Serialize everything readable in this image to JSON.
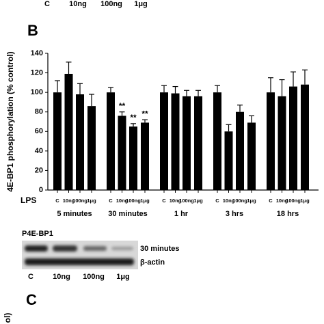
{
  "figure": {
    "top_lanes": [
      "C",
      "10ng",
      "100ng",
      "1μg"
    ],
    "panel_b": "B",
    "x_prefix": "LPS",
    "blot_title": "P4E-BP1",
    "blot_rows": [
      "30 minutes",
      "β-actin"
    ],
    "blot_lanes": [
      "C",
      "10ng",
      "100ng",
      "1μg"
    ],
    "panel_c": "C",
    "cut_label": "ol)"
  },
  "chart_data": {
    "type": "bar",
    "ylabel": "4E-BP1 phosphorylation (% control)",
    "categories": [
      "5 minutes",
      "30 minutes",
      "1 hr",
      "3 hrs",
      "18 hrs"
    ],
    "series": [
      {
        "name": "C",
        "color": "#000000",
        "values": [
          100,
          100,
          100,
          100,
          100
        ],
        "errors": [
          12,
          5,
          7,
          7,
          15
        ],
        "significance": [
          null,
          null,
          null,
          null,
          null
        ]
      },
      {
        "name": "10ng",
        "color": "#000000",
        "values": [
          119,
          76,
          99,
          60,
          96
        ],
        "errors": [
          12,
          4,
          7,
          7,
          17
        ],
        "significance": [
          null,
          "**",
          null,
          null,
          null
        ]
      },
      {
        "name": "100ng",
        "color": "#000000",
        "values": [
          98,
          65,
          96,
          80,
          106
        ],
        "errors": [
          11,
          3,
          6,
          7,
          15
        ],
        "significance": [
          null,
          "**",
          null,
          null,
          null
        ]
      },
      {
        "name": "1μg",
        "color": "#000000",
        "values": [
          86,
          69,
          96,
          69,
          108
        ],
        "errors": [
          12,
          3,
          6,
          7,
          15
        ],
        "significance": [
          null,
          "**",
          null,
          null,
          null
        ]
      }
    ],
    "ylim": [
      0,
      140
    ],
    "yticks": [
      0,
      20,
      40,
      60,
      80,
      100,
      120,
      140
    ]
  }
}
